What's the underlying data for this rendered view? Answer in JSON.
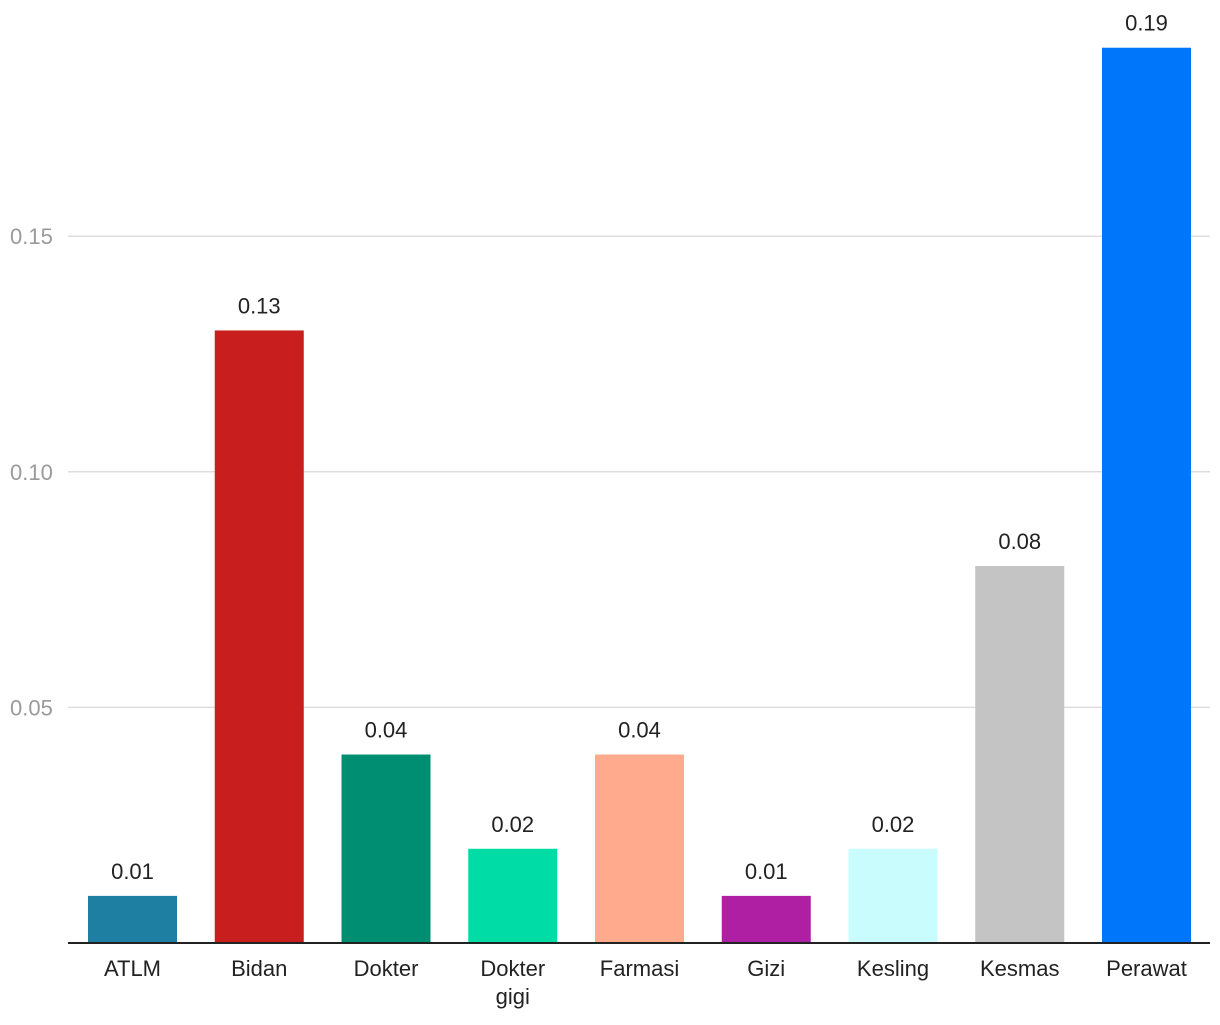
{
  "chart_data": {
    "type": "bar",
    "title": "",
    "xlabel": "",
    "ylabel": "",
    "ylim": [
      0,
      0.2
    ],
    "yticks": [
      {
        "value": 0.05,
        "label": "0.05"
      },
      {
        "value": 0.1,
        "label": "0.10"
      },
      {
        "value": 0.15,
        "label": "0.15"
      }
    ],
    "grid": true,
    "legend": "none",
    "bars": [
      {
        "category_lines": [
          "ATLM"
        ],
        "value": 0.01,
        "label": "0.01",
        "color": "#1f7fa3"
      },
      {
        "category_lines": [
          "Bidan"
        ],
        "value": 0.13,
        "label": "0.13",
        "color": "#c81e1e"
      },
      {
        "category_lines": [
          "Dokter"
        ],
        "value": 0.04,
        "label": "0.04",
        "color": "#008e73"
      },
      {
        "category_lines": [
          "Dokter",
          "gigi"
        ],
        "value": 0.02,
        "label": "0.02",
        "color": "#00dca5"
      },
      {
        "category_lines": [
          "Farmasi"
        ],
        "value": 0.04,
        "label": "0.04",
        "color": "#ffaa8c"
      },
      {
        "category_lines": [
          "Gizi"
        ],
        "value": 0.01,
        "label": "0.01",
        "color": "#ae1fa3"
      },
      {
        "category_lines": [
          "Kesling"
        ],
        "value": 0.02,
        "label": "0.02",
        "color": "#c9fcfc"
      },
      {
        "category_lines": [
          "Kesmas"
        ],
        "value": 0.08,
        "label": "0.08",
        "color": "#c4c4c4"
      },
      {
        "category_lines": [
          "Perawat"
        ],
        "value": 0.19,
        "label": "0.19",
        "color": "#0077fa"
      }
    ],
    "colors": {
      "gridline": "#dddddd",
      "axis": "#222222",
      "tick_text": "#9a9a9a",
      "label_text": "#222222"
    }
  }
}
